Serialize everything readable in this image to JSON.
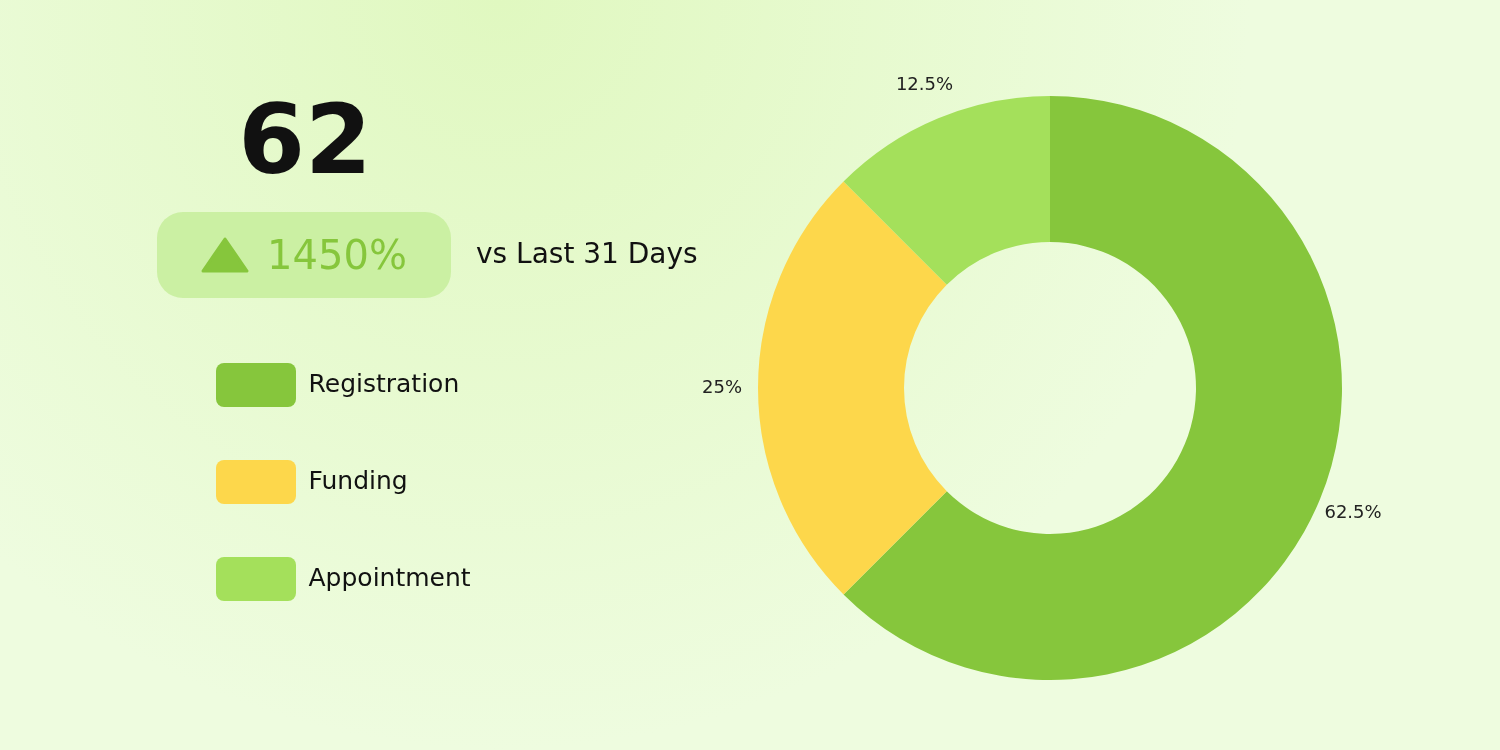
{
  "chart_data": {
    "type": "donut",
    "categories": [
      "Registration",
      "Funding",
      "Appointment"
    ],
    "values": [
      62.5,
      25,
      12.5
    ],
    "colors": [
      "#86c63c",
      "#fdd74b",
      "#a4e05b"
    ],
    "value_labels": [
      "62.5%",
      "25%",
      "12.5%"
    ],
    "legend": "left",
    "annotations": [
      "62",
      "1450%",
      "vs Last 31 Days"
    ]
  }
}
